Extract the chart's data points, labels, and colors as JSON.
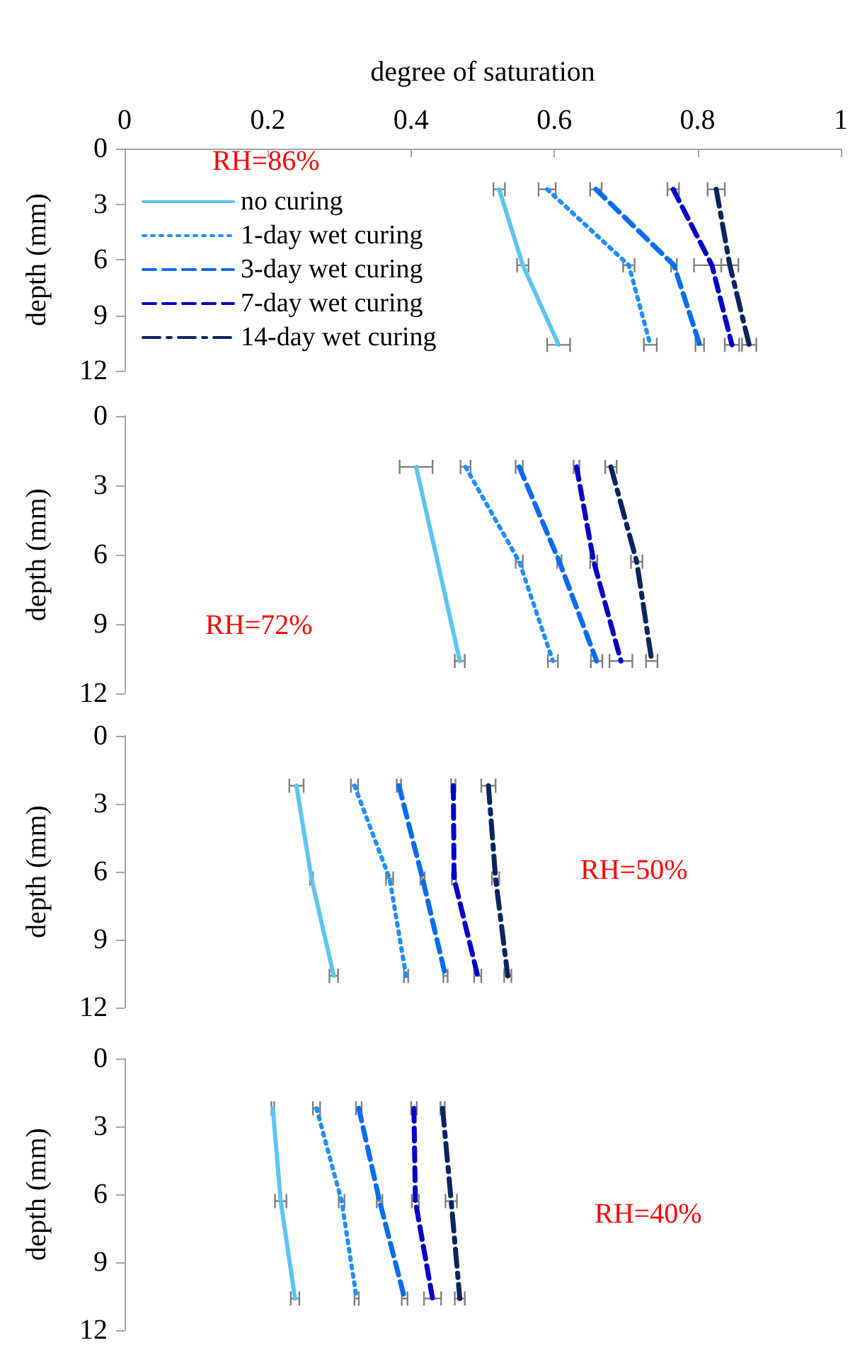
{
  "chart_data": [
    {
      "type": "line",
      "xlabel": "degree of saturation",
      "ylabel": "depth (mm)",
      "xlim": [
        0,
        1
      ],
      "xticks": [
        0,
        0.2,
        0.4,
        0.6,
        0.8,
        1
      ],
      "ylim": [
        12,
        0
      ],
      "yticks": [
        0,
        3,
        6,
        9,
        12
      ],
      "grid": false,
      "legend": "left",
      "marker": "none",
      "annotations": [
        "RH=86%"
      ],
      "series": [
        {
          "name": "no curing",
          "color": "#5bc5f2",
          "line_style": "solid",
          "x": [
            0.523,
            0.556,
            0.606
          ],
          "values": [
            2.2,
            6.3,
            10.6
          ],
          "xerrors": [
            0.008,
            0.008,
            0.016
          ]
        },
        {
          "name": "1-day wet curing",
          "color": "#1e8fff",
          "line_style": "dotted",
          "x": [
            0.59,
            0.704,
            0.734
          ],
          "values": [
            2.2,
            6.3,
            10.6
          ],
          "xerrors": [
            0.012,
            0.008,
            0.009
          ]
        },
        {
          "name": "3-day wet curing",
          "color": "#0a6cf0",
          "line_style": "dashed",
          "x": [
            0.658,
            0.767,
            0.803
          ],
          "values": [
            2.2,
            6.3,
            10.6
          ],
          "xerrors": [
            0.008,
            0.004,
            0.006
          ]
        },
        {
          "name": "7-day wet curing",
          "color": "#0000c8",
          "line_style": "dashed",
          "x": [
            0.766,
            0.82,
            0.848
          ],
          "values": [
            2.2,
            6.3,
            10.6
          ],
          "xerrors": [
            0.008,
            0.025,
            0.01
          ]
        },
        {
          "name": "14-day wet curing",
          "color": "#0a2460",
          "line_style": "dashdot",
          "x": [
            0.826,
            0.845,
            0.872
          ],
          "values": [
            2.2,
            6.3,
            10.6
          ],
          "xerrors": [
            0.012,
            0.012,
            0.01
          ]
        }
      ]
    },
    {
      "type": "line",
      "ylabel": "depth (mm)",
      "xlim": [
        0,
        1
      ],
      "ylim": [
        12,
        0
      ],
      "yticks": [
        0,
        3,
        6,
        9,
        12
      ],
      "tick_labels": "y",
      "grid": false,
      "marker": "none",
      "annotations": [
        "RH=72%"
      ],
      "series": [
        {
          "color": "#5bc5f2",
          "line_style": "solid",
          "x": [
            0.407,
            0.437,
            0.468
          ],
          "values": [
            2.2,
            6.3,
            10.6
          ],
          "xerrors": [
            0.023,
            null,
            0.007
          ]
        },
        {
          "color": "#1e8fff",
          "line_style": "dotted",
          "x": [
            0.476,
            0.551,
            0.598
          ],
          "values": [
            2.2,
            6.3,
            10.6
          ],
          "xerrors": [
            0.007,
            0.005,
            0.007
          ]
        },
        {
          "color": "#0a6cf0",
          "line_style": "dashed",
          "x": [
            0.551,
            0.607,
            0.659
          ],
          "values": [
            2.2,
            6.3,
            10.6
          ],
          "xerrors": [
            0.005,
            0.003,
            0.008
          ]
        },
        {
          "color": "#0000c8",
          "line_style": "dashed",
          "x": [
            0.631,
            0.655,
            0.693
          ],
          "values": [
            2.2,
            6.3,
            10.6
          ],
          "xerrors": [
            0.004,
            0.005,
            0.016
          ]
        },
        {
          "color": "#0a2460",
          "line_style": "dashdot",
          "x": [
            0.679,
            0.715,
            0.736
          ],
          "values": [
            2.2,
            6.3,
            10.6
          ],
          "xerrors": [
            0.008,
            0.008,
            0.008
          ]
        }
      ]
    },
    {
      "type": "line",
      "ylabel": "depth (mm)",
      "xlim": [
        0,
        1
      ],
      "ylim": [
        12,
        0
      ],
      "yticks": [
        0,
        3,
        6,
        9,
        12
      ],
      "tick_labels": "y",
      "grid": false,
      "marker": "none",
      "annotations": [
        "RH=50%"
      ],
      "series": [
        {
          "color": "#5bc5f2",
          "line_style": "solid",
          "x": [
            0.24,
            0.261,
            0.292
          ],
          "values": [
            2.2,
            6.3,
            10.6
          ],
          "xerrors": [
            0.01,
            0.002,
            0.006
          ]
        },
        {
          "color": "#1e8fff",
          "line_style": "dotted",
          "x": [
            0.321,
            0.37,
            0.393
          ],
          "values": [
            2.2,
            6.3,
            10.6
          ],
          "xerrors": [
            0.005,
            0.005,
            0.003
          ]
        },
        {
          "color": "#0a6cf0",
          "line_style": "dashed",
          "x": [
            0.383,
            0.416,
            0.448
          ],
          "values": [
            2.2,
            6.3,
            10.6
          ],
          "xerrors": [
            0.003,
            0.003,
            0.003
          ]
        },
        {
          "color": "#0000c8",
          "line_style": "dashed",
          "x": [
            0.459,
            0.46,
            0.493
          ],
          "values": [
            2.2,
            6.3,
            10.6
          ],
          "xerrors": [
            0.003,
            0.003,
            0.005
          ]
        },
        {
          "color": "#0a2460",
          "line_style": "dashdot",
          "x": [
            0.508,
            0.518,
            0.535
          ],
          "values": [
            2.2,
            6.3,
            10.6
          ],
          "xerrors": [
            0.01,
            0.005,
            0.005
          ]
        }
      ]
    },
    {
      "type": "line",
      "ylabel": "depth (mm)",
      "xlim": [
        0,
        1
      ],
      "ylim": [
        12,
        0
      ],
      "yticks": [
        0,
        3,
        6,
        9,
        12
      ],
      "tick_labels": "y",
      "grid": false,
      "marker": "none",
      "annotations": [
        "RH=40%"
      ],
      "series": [
        {
          "color": "#5bc5f2",
          "line_style": "solid",
          "x": [
            0.207,
            0.218,
            0.238
          ],
          "values": [
            2.2,
            6.3,
            10.6
          ],
          "xerrors": [
            0.002,
            0.008,
            0.006
          ]
        },
        {
          "color": "#1e8fff",
          "line_style": "dotted",
          "x": [
            0.268,
            0.303,
            0.324
          ],
          "values": [
            2.2,
            6.3,
            10.6
          ],
          "xerrors": [
            0.005,
            0.004,
            0.003
          ]
        },
        {
          "color": "#0a6cf0",
          "line_style": "dashed",
          "x": [
            0.327,
            0.356,
            0.391
          ],
          "values": [
            2.2,
            6.3,
            10.6
          ],
          "xerrors": [
            0.004,
            0.004,
            0.004
          ]
        },
        {
          "color": "#0000c8",
          "line_style": "dashed",
          "x": [
            0.404,
            0.406,
            0.43
          ],
          "values": [
            2.2,
            6.3,
            10.6
          ],
          "xerrors": [
            0.004,
            0.005,
            0.012
          ]
        },
        {
          "color": "#0a2460",
          "line_style": "dashdot",
          "x": [
            0.444,
            0.456,
            0.468
          ],
          "values": [
            2.2,
            6.3,
            10.6
          ],
          "xerrors": [
            0.003,
            0.008,
            0.007
          ]
        }
      ]
    }
  ]
}
